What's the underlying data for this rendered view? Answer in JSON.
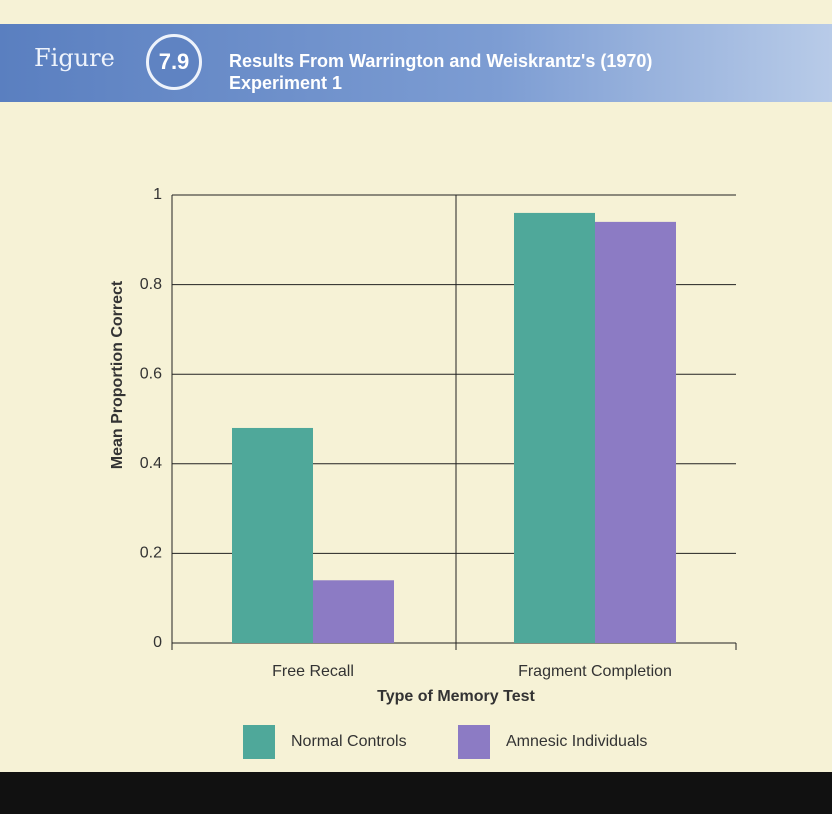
{
  "header": {
    "figure_word": "Figure",
    "figure_number": "7.9",
    "title": "Results From Warrington and Weiskrantz's (1970) Experiment 1"
  },
  "chart_data": {
    "type": "bar",
    "categories": [
      "Free Recall",
      "Fragment Completion"
    ],
    "series": [
      {
        "name": "Normal Controls",
        "color": "#4fa89a",
        "values": [
          0.48,
          0.96
        ]
      },
      {
        "name": "Amnesic Individuals",
        "color": "#8c7bc4",
        "values": [
          0.14,
          0.94
        ]
      }
    ],
    "x_label": "Type of Memory Test",
    "y_label": "Mean Proportion Correct",
    "ylim": [
      0,
      1
    ],
    "yticks": [
      0,
      0.2,
      0.4,
      0.6,
      0.8,
      1
    ],
    "grid": true
  }
}
